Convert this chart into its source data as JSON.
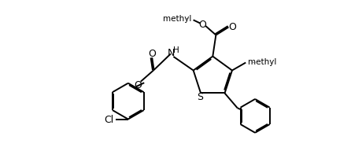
{
  "background": "#ffffff",
  "linewidth": 1.4,
  "fontsize": 8.5,
  "figsize": [
    4.46,
    2.07
  ],
  "dpi": 100,
  "xlim": [
    0,
    89
  ],
  "ylim": [
    0,
    41
  ]
}
